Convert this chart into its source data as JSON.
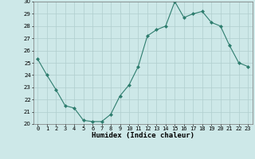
{
  "x": [
    0,
    1,
    2,
    3,
    4,
    5,
    6,
    7,
    8,
    9,
    10,
    11,
    12,
    13,
    14,
    15,
    16,
    17,
    18,
    19,
    20,
    21,
    22,
    23
  ],
  "y": [
    25.3,
    24.0,
    22.8,
    21.5,
    21.3,
    20.3,
    20.2,
    20.2,
    20.8,
    22.3,
    23.2,
    24.7,
    27.2,
    27.7,
    28.0,
    30.0,
    28.7,
    29.0,
    29.2,
    28.3,
    28.0,
    26.4,
    25.0,
    24.7
  ],
  "line_color": "#2e7d6e",
  "marker": "D",
  "marker_size": 2.0,
  "bg_color": "#cde8e8",
  "grid_color": "#b0cece",
  "xlabel": "Humidex (Indice chaleur)",
  "ylim": [
    20,
    30
  ],
  "xlim": [
    -0.5,
    23.5
  ],
  "yticks": [
    20,
    21,
    22,
    23,
    24,
    25,
    26,
    27,
    28,
    29,
    30
  ],
  "xticks": [
    0,
    1,
    2,
    3,
    4,
    5,
    6,
    7,
    8,
    9,
    10,
    11,
    12,
    13,
    14,
    15,
    16,
    17,
    18,
    19,
    20,
    21,
    22,
    23
  ],
  "tick_fontsize": 5.0,
  "xlabel_fontsize": 6.5,
  "linewidth": 0.8
}
